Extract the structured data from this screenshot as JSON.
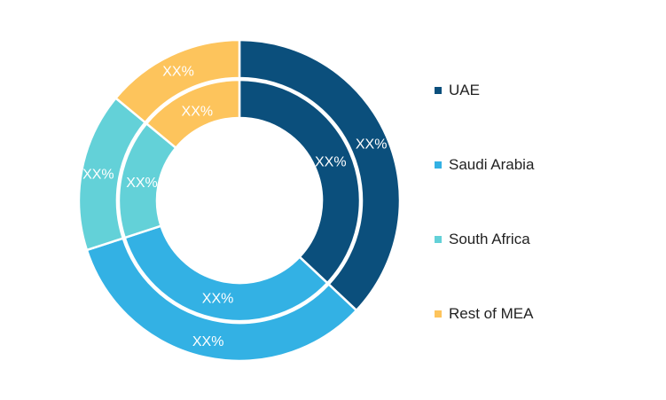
{
  "chart_data": {
    "type": "pie",
    "variant": "double-donut",
    "categories": [
      "UAE",
      "Saudi Arabia",
      "South Africa",
      "Rest of MEA"
    ],
    "colors": [
      "#0b4f7c",
      "#33b1e4",
      "#63d1d8",
      "#fdc45c"
    ],
    "series": [
      {
        "ring": "outer",
        "values": [
          37,
          33,
          16,
          14
        ],
        "labels": [
          "XX%",
          "XX%",
          "XX%",
          "XX%"
        ]
      },
      {
        "ring": "inner",
        "values": [
          37,
          33,
          16,
          14
        ],
        "labels": [
          "XX%",
          "XX%",
          "XX%",
          "XX%"
        ]
      }
    ],
    "legend_position": "right"
  }
}
